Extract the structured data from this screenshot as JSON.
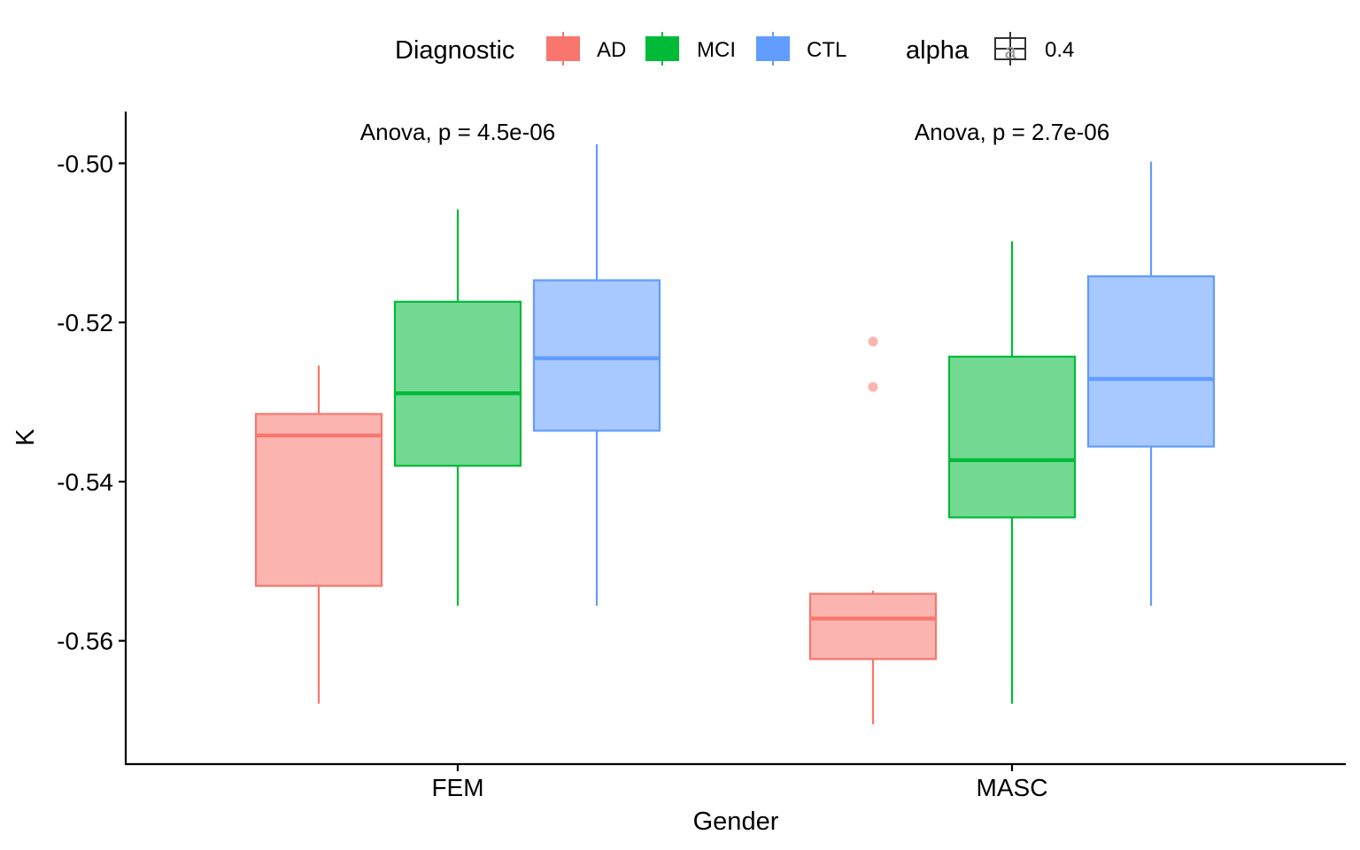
{
  "chart_data": {
    "type": "boxplot",
    "xlabel": "Gender",
    "ylabel": "K",
    "categories": [
      "FEM",
      "MASC"
    ],
    "ylim": [
      -0.5755,
      -0.4935
    ],
    "yticks": [
      -0.5,
      -0.52,
      -0.54,
      -0.56
    ],
    "ytick_labels": [
      "-0.50",
      "-0.52",
      "-0.54",
      "-0.56"
    ],
    "grid": false,
    "legend_position": "top",
    "legend": {
      "title": "Diagnostic",
      "entries": [
        "AD",
        "MCI",
        "CTL"
      ],
      "alpha_title": "alpha",
      "alpha_value": "0.4",
      "alpha_key_glyph": "a"
    },
    "series": [
      {
        "name": "AD",
        "color": "#F8766D",
        "boxes": [
          {
            "category": "FEM",
            "whisker_low": -0.5679,
            "q1": -0.5531,
            "median": -0.5342,
            "q3": -0.5315,
            "whisker_high": -0.5254,
            "outliers": []
          },
          {
            "category": "MASC",
            "whisker_low": -0.5705,
            "q1": -0.5623,
            "median": -0.5572,
            "q3": -0.5541,
            "whisker_high": -0.5537,
            "outliers": [
              -0.5224,
              -0.5281
            ]
          }
        ]
      },
      {
        "name": "MCI",
        "color": "#00BA38",
        "boxes": [
          {
            "category": "FEM",
            "whisker_low": -0.5556,
            "q1": -0.538,
            "median": -0.5289,
            "q3": -0.5174,
            "whisker_high": -0.5058,
            "outliers": []
          },
          {
            "category": "MASC",
            "whisker_low": -0.5679,
            "q1": -0.5445,
            "median": -0.5373,
            "q3": -0.5243,
            "whisker_high": -0.5098,
            "outliers": []
          }
        ]
      },
      {
        "name": "CTL",
        "color": "#619CFF",
        "boxes": [
          {
            "category": "FEM",
            "whisker_low": -0.5556,
            "q1": -0.5336,
            "median": -0.5245,
            "q3": -0.5147,
            "whisker_high": -0.4976,
            "outliers": []
          },
          {
            "category": "MASC",
            "whisker_low": -0.5556,
            "q1": -0.5356,
            "median": -0.5271,
            "q3": -0.5142,
            "whisker_high": -0.4998,
            "outliers": []
          }
        ]
      }
    ],
    "annotations": [
      {
        "category": "FEM",
        "text": "Anova, p = 4.5e-06"
      },
      {
        "category": "MASC",
        "text": "Anova, p = 2.7e-06"
      }
    ]
  }
}
